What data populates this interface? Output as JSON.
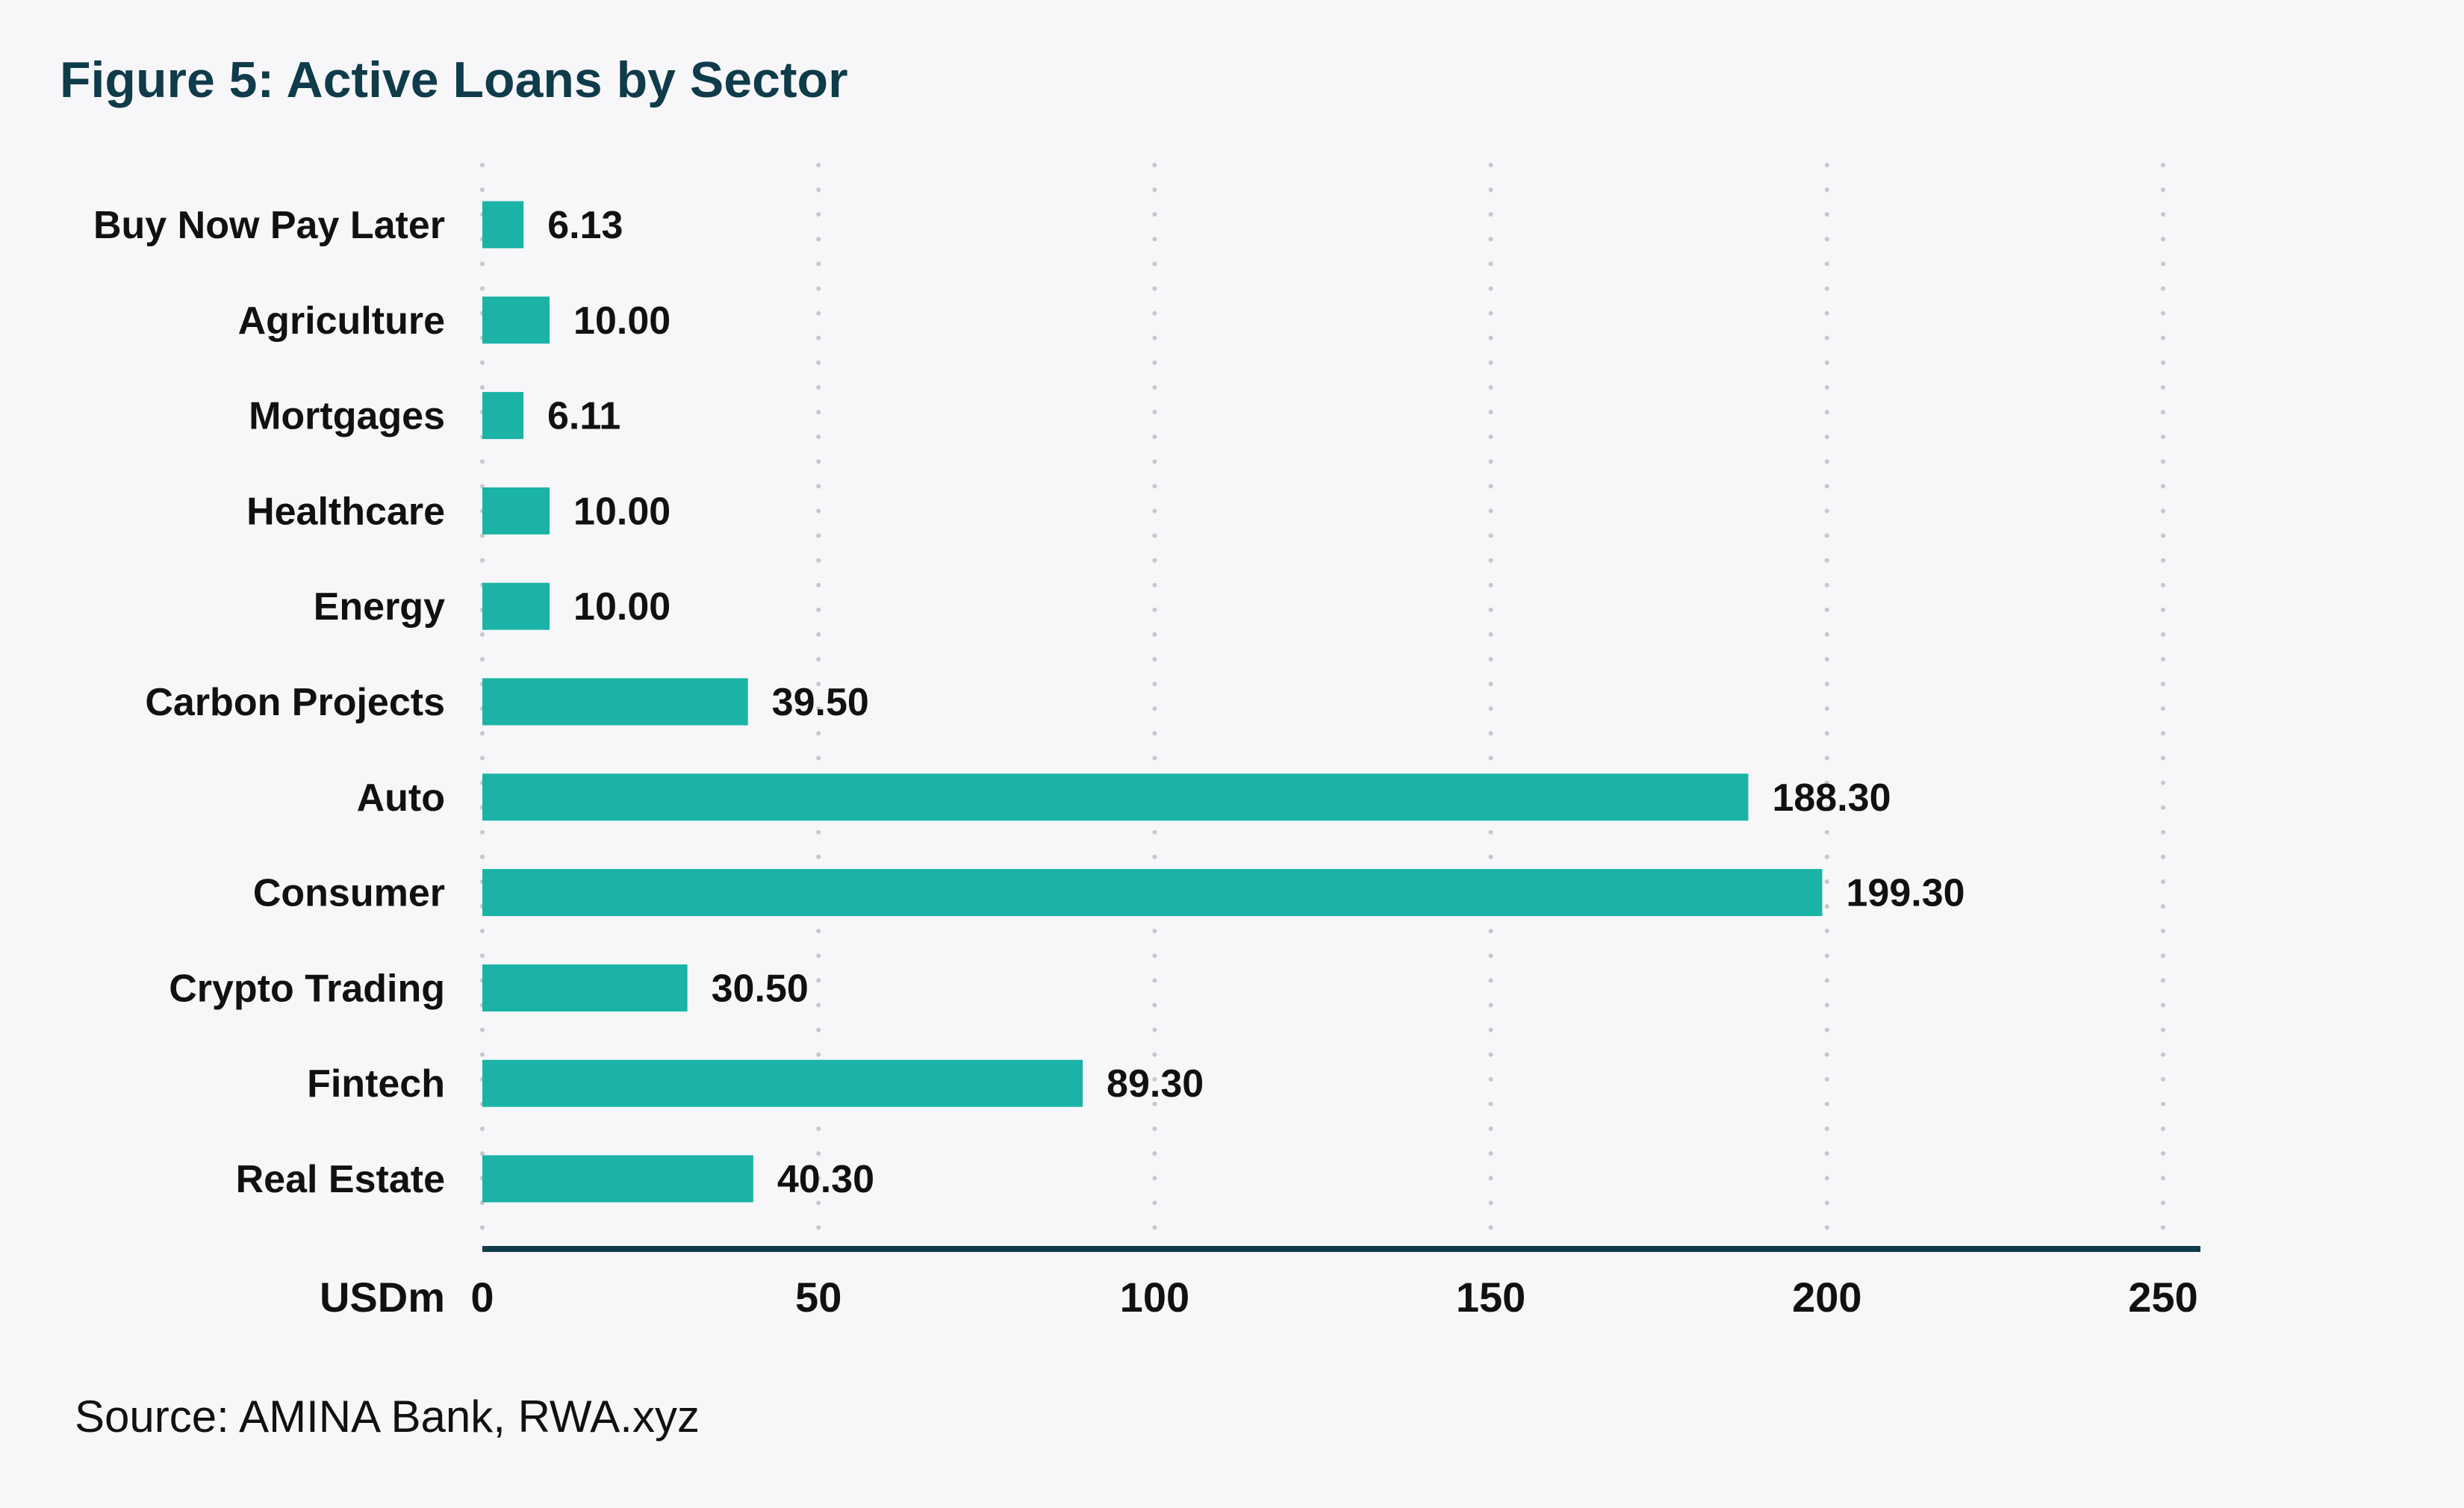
{
  "chart_data": {
    "type": "bar",
    "orientation": "horizontal",
    "title": "Figure 5: Active Loans by Sector",
    "xlabel": "USDm",
    "ylabel": "",
    "categories": [
      "Buy Now Pay Later",
      "Agriculture",
      "Mortgages",
      "Healthcare",
      "Energy",
      "Carbon Projects",
      "Auto",
      "Consumer",
      "Crypto Trading",
      "Fintech",
      "Real Estate"
    ],
    "values": [
      6.13,
      10.0,
      6.11,
      10.0,
      10.0,
      39.5,
      188.3,
      199.3,
      30.5,
      89.3,
      40.3
    ],
    "value_labels": [
      "6.13",
      "10.00",
      "6.11",
      "10.00",
      "10.00",
      "39.50",
      "188.30",
      "199.30",
      "30.50",
      "89.30",
      "40.30"
    ],
    "xlim": [
      0,
      250
    ],
    "xticks": [
      0,
      50,
      100,
      150,
      200,
      250
    ],
    "xtick_labels": [
      "0",
      "50",
      "100",
      "150",
      "200",
      "250"
    ],
    "grid": "vertical dotted",
    "colors": {
      "bar": "#1ab3a6",
      "axis": "#0f3b4a",
      "title": "#0f3b4a",
      "grid": "#c8c8cc",
      "background": "#f7f7f9"
    },
    "source": "Source: AMINA Bank, RWA.xyz"
  }
}
